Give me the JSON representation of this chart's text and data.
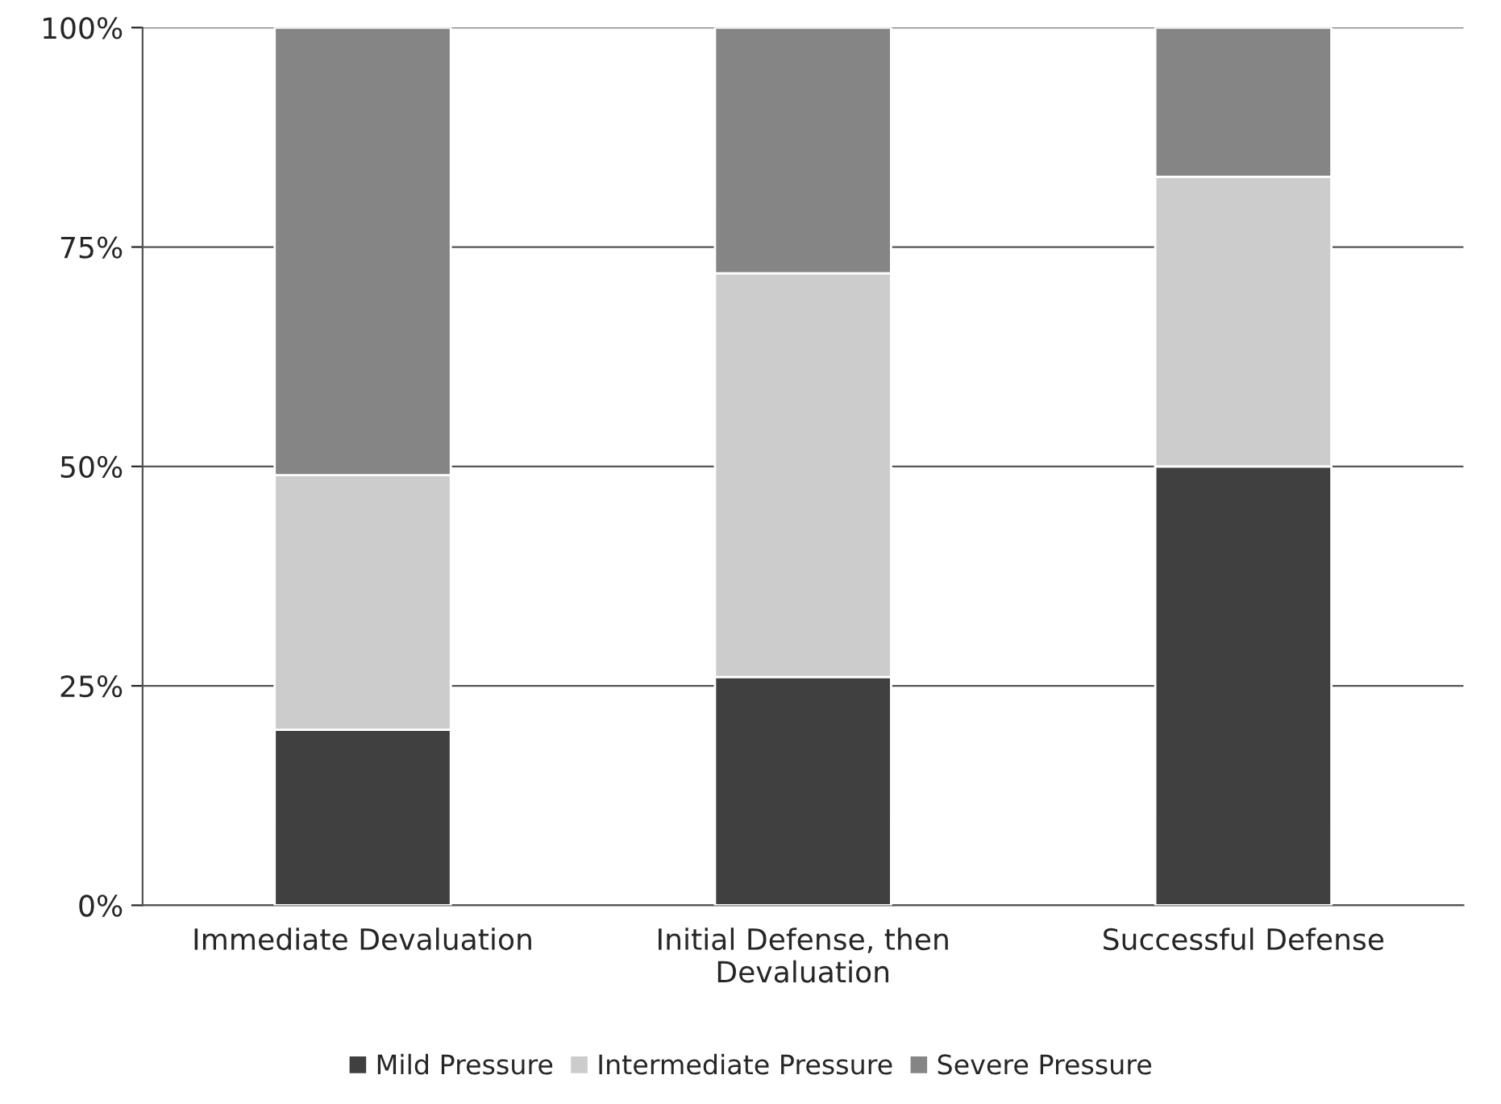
{
  "chart_data": {
    "type": "bar",
    "stacked": true,
    "categories": [
      "Immediate Devaluation",
      "Initial Defense, then\nDevaluation",
      "Successful Defense"
    ],
    "series": [
      {
        "name": "Mild Pressure",
        "color": "#404040",
        "values": [
          20,
          26,
          50
        ]
      },
      {
        "name": "Intermediate Pressure",
        "color": "#cccccc",
        "values": [
          29,
          46,
          33
        ]
      },
      {
        "name": "Severe Pressure",
        "color": "#858585",
        "values": [
          51,
          28,
          17
        ]
      }
    ],
    "ylim": [
      0,
      100
    ],
    "yticks": [
      {
        "value": 0,
        "label": "0%"
      },
      {
        "value": 25,
        "label": "25%"
      },
      {
        "value": 50,
        "label": "50%"
      },
      {
        "value": 75,
        "label": "75%"
      },
      {
        "value": 100,
        "label": "100%"
      }
    ],
    "grid": "y",
    "legend": "bottom"
  }
}
